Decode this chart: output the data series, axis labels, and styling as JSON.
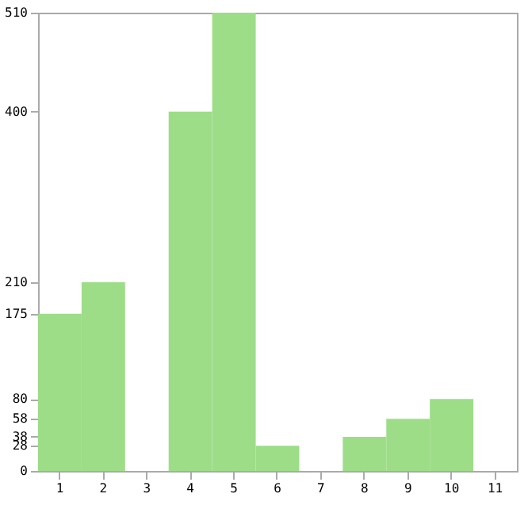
{
  "chart_data": {
    "type": "bar",
    "categories": [
      "1",
      "2",
      "3",
      "4",
      "5",
      "6",
      "7",
      "8",
      "9",
      "10",
      "11"
    ],
    "values": [
      175,
      210,
      0,
      400,
      510,
      28,
      0,
      38,
      58,
      80,
      0
    ],
    "color": "#9ddd88",
    "ylim": [
      0,
      510
    ],
    "yticks": [
      0,
      28,
      38,
      58,
      80,
      175,
      210,
      400,
      510
    ],
    "grid": false
  }
}
